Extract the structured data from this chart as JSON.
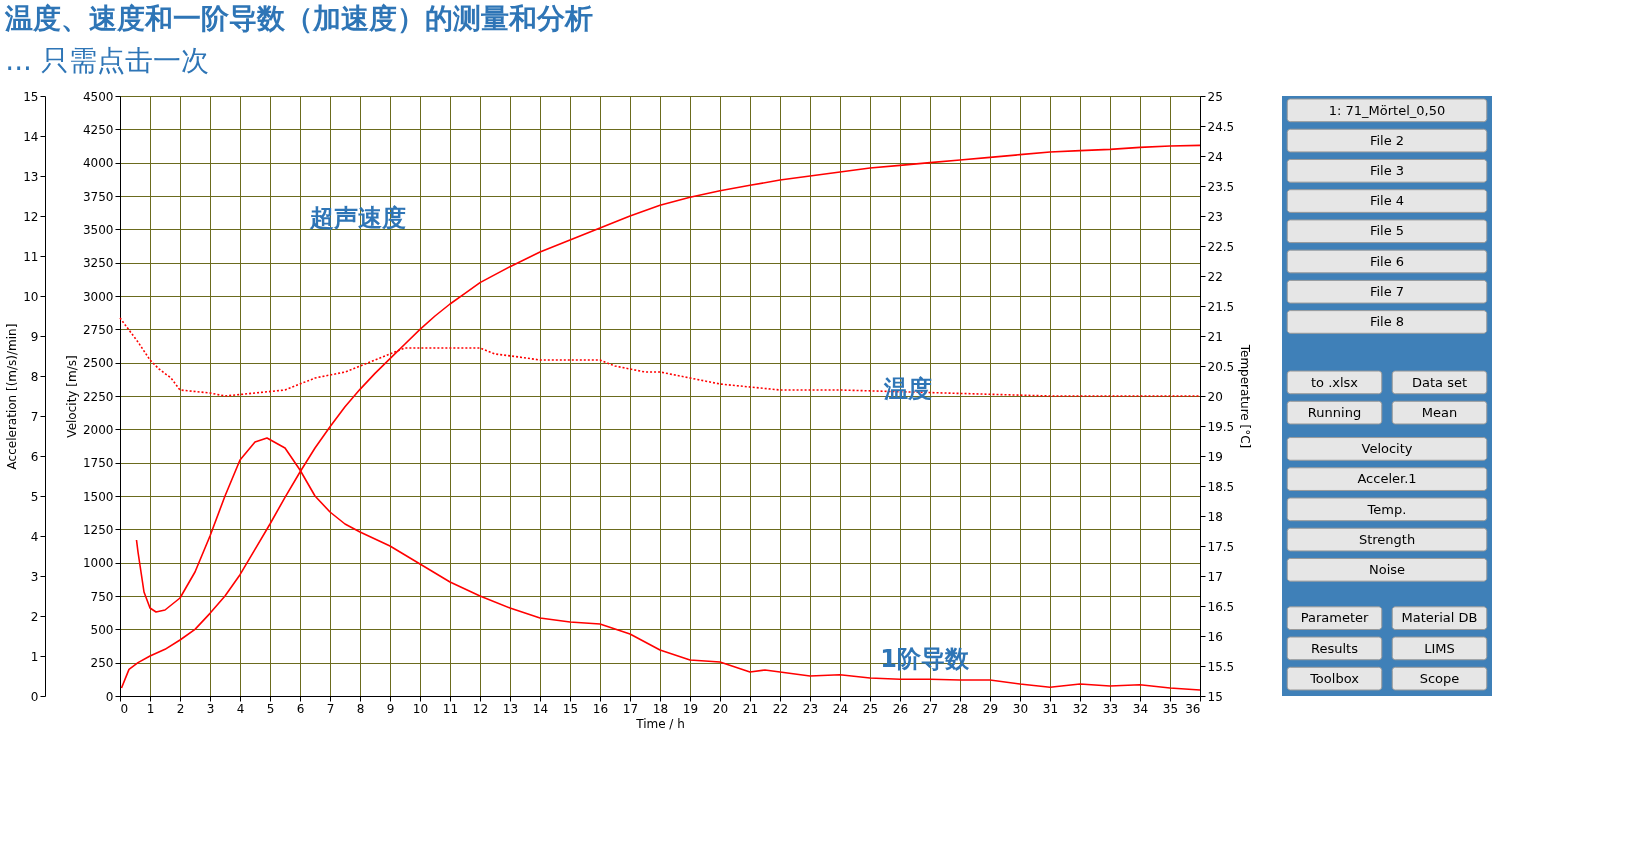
{
  "chart_data": {
    "type": "line",
    "title": "温度、速度和一阶导数（加速度）的测量和分析",
    "subtitle": "... 只需点击一次",
    "xlabel": "Time / h",
    "ylabel": "Velocity [m/s]",
    "y2label": "Temperature [°C]",
    "y3label": "Acceleration [(m/s)/min]",
    "xlim": [
      0,
      36
    ],
    "xticks": [
      0,
      1,
      2,
      3,
      4,
      5,
      6,
      7,
      8,
      9,
      10,
      11,
      12,
      13,
      14,
      15,
      16,
      17,
      18,
      19,
      20,
      21,
      22,
      23,
      24,
      25,
      26,
      27,
      28,
      29,
      30,
      31,
      32,
      33,
      34,
      35,
      36
    ],
    "ylim": [
      0,
      4500
    ],
    "yticks": [
      0,
      250,
      500,
      750,
      1000,
      1250,
      1500,
      1750,
      2000,
      2250,
      2500,
      2750,
      3000,
      3250,
      3500,
      3750,
      4000,
      4250,
      4500
    ],
    "y2lim": [
      15,
      25
    ],
    "y2ticks": [
      15,
      15.5,
      16,
      16.5,
      17,
      17.5,
      18,
      18.5,
      19,
      19.5,
      20,
      20.5,
      21,
      21.5,
      22,
      22.5,
      23,
      23.5,
      24,
      24.5,
      25
    ],
    "y3lim": [
      0,
      15
    ],
    "y3ticks": [
      0,
      1,
      2,
      3,
      4,
      5,
      6,
      7,
      8,
      9,
      10,
      11,
      12,
      13,
      14,
      15
    ],
    "grid": true,
    "marker": "none",
    "series": [
      {
        "color": "#ff0000",
        "axis": "y",
        "line_style": "solid",
        "x": [
          0.05,
          0.3,
          0.6,
          1,
          1.5,
          2,
          2.5,
          3,
          3.5,
          4,
          4.5,
          5,
          5.5,
          6,
          6.5,
          7,
          7.5,
          8,
          8.5,
          9,
          9.5,
          10,
          10.5,
          11,
          11.5,
          12,
          12.5,
          13,
          14,
          15,
          16,
          17,
          18,
          19,
          20,
          21,
          22,
          23,
          24,
          25,
          26,
          27,
          28,
          29,
          30,
          31,
          32,
          33,
          34,
          35,
          36
        ],
        "values": [
          60,
          200,
          250,
          300,
          350,
          420,
          500,
          620,
          750,
          910,
          1100,
          1290,
          1490,
          1680,
          1860,
          2020,
          2170,
          2300,
          2420,
          2530,
          2640,
          2750,
          2850,
          2940,
          3020,
          3100,
          3160,
          3220,
          3330,
          3420,
          3510,
          3600,
          3680,
          3740,
          3790,
          3830,
          3870,
          3900,
          3930,
          3960,
          3980,
          4000,
          4020,
          4040,
          4060,
          4080,
          4090,
          4100,
          4115,
          4125,
          4130
        ]
      },
      {
        "color": "#ff0000",
        "axis": "y3",
        "line_style": "solid",
        "x": [
          0.55,
          0.6,
          0.8,
          1,
          1.2,
          1.5,
          2,
          2.5,
          3,
          3.5,
          4,
          4.5,
          4.9,
          5.5,
          6,
          6.5,
          7,
          7.5,
          8,
          9,
          10,
          11,
          12,
          13,
          14,
          15,
          16,
          17,
          18,
          19,
          20,
          21,
          21.5,
          22,
          23,
          24,
          25,
          26,
          27,
          28,
          29,
          30,
          31,
          32,
          33,
          34,
          35,
          36
        ],
        "values": [
          3.9,
          3.6,
          2.6,
          2.2,
          2.1,
          2.15,
          2.45,
          3.1,
          4.0,
          5.0,
          5.9,
          6.35,
          6.45,
          6.2,
          5.65,
          5.0,
          4.6,
          4.3,
          4.1,
          3.75,
          3.3,
          2.85,
          2.5,
          2.2,
          1.95,
          1.85,
          1.8,
          1.55,
          1.15,
          0.9,
          0.85,
          0.6,
          0.65,
          0.6,
          0.5,
          0.53,
          0.45,
          0.42,
          0.42,
          0.4,
          0.4,
          0.3,
          0.22,
          0.3,
          0.25,
          0.28,
          0.2,
          0.15
        ]
      },
      {
        "color": "#ff0000",
        "axis": "y2",
        "line_style": "dotted",
        "x": [
          0,
          0.3,
          0.6,
          1,
          1.3,
          1.7,
          2,
          3,
          3.5,
          4.5,
          5.5,
          6,
          6.5,
          7.5,
          8,
          9,
          9.5,
          12,
          12.5,
          13.3,
          14,
          16,
          16.5,
          17.5,
          18,
          19,
          20,
          21,
          22,
          24,
          31,
          36
        ],
        "values": [
          21.3,
          21.1,
          20.9,
          20.6,
          20.45,
          20.3,
          20.1,
          20.05,
          20.0,
          20.05,
          20.1,
          20.2,
          20.3,
          20.4,
          20.5,
          20.7,
          20.8,
          20.8,
          20.7,
          20.65,
          20.6,
          20.6,
          20.5,
          20.4,
          20.4,
          20.3,
          20.2,
          20.15,
          20.1,
          20.1,
          20.0,
          20.0
        ]
      }
    ],
    "annotations": [
      "超声速度",
      "温度",
      "1阶导数",
      "1: 71_Mörtel_0,50",
      "File 2",
      "File 3",
      "File 4",
      "File 5",
      "File 6",
      "File 7",
      "File 8",
      "to .xlsx",
      "Data set",
      "Running",
      "Mean",
      "Velocity",
      "Acceler.1",
      "Temp.",
      "Strength",
      "Noise",
      "Parameter",
      "Material DB",
      "Results",
      "LIMS",
      "Toolbox",
      "Scope"
    ]
  }
}
